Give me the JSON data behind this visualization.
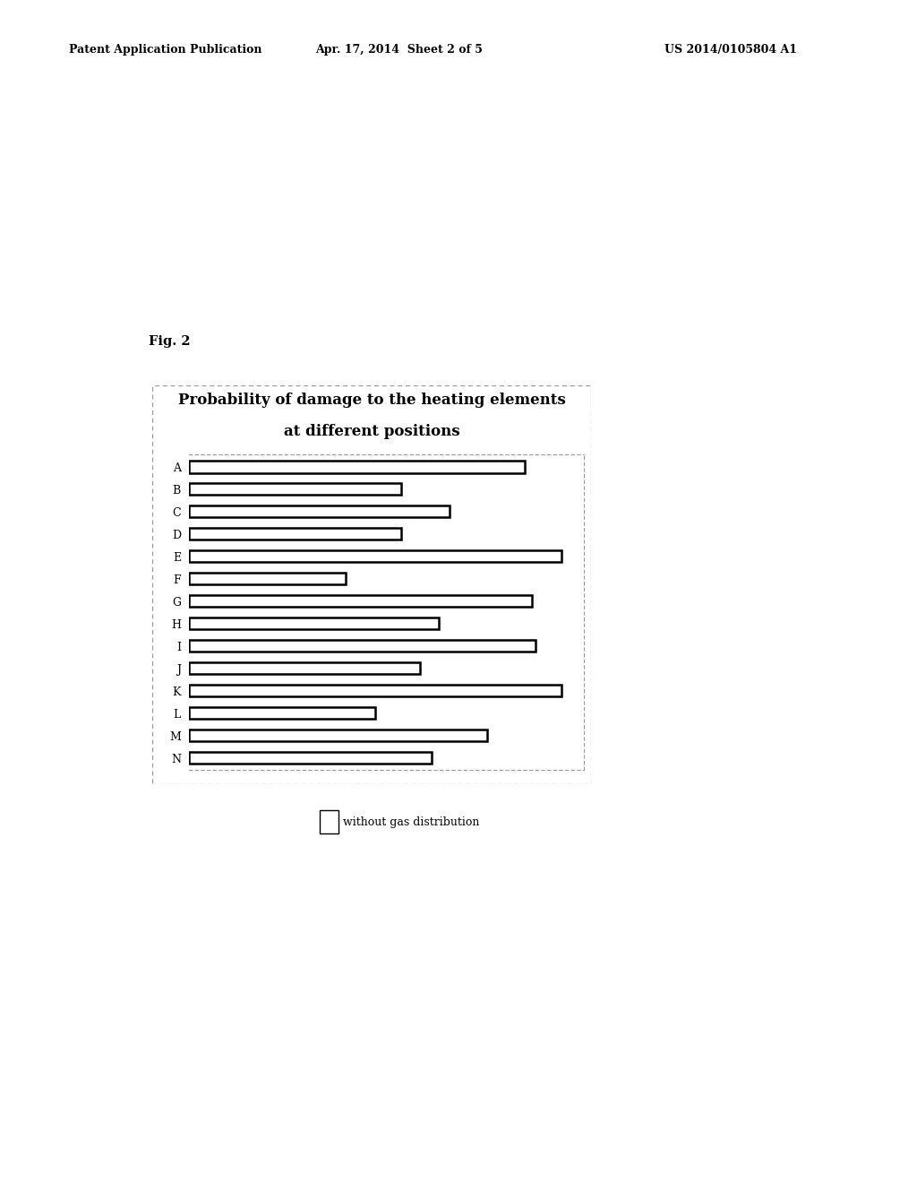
{
  "title_line1": "Probability of damage to the heating elements",
  "title_line2": "at different positions",
  "categories": [
    "A",
    "B",
    "C",
    "D",
    "E",
    "F",
    "G",
    "H",
    "I",
    "J",
    "K",
    "L",
    "M",
    "N"
  ],
  "values": [
    0.9,
    0.57,
    0.7,
    0.57,
    1.0,
    0.42,
    0.92,
    0.67,
    0.93,
    0.62,
    1.0,
    0.5,
    0.8,
    0.65
  ],
  "bar_color": "#ffffff",
  "bar_edgecolor": "#000000",
  "background_color": "#ffffff",
  "header_left": "Patent Application Publication",
  "header_mid": "Apr. 17, 2014  Sheet 2 of 5",
  "header_right": "US 2014/0105804 A1",
  "fig_label": "Fig. 2",
  "legend_label": "without gas distribution",
  "bar_linewidth": 1.8,
  "spine_color": "#999999"
}
